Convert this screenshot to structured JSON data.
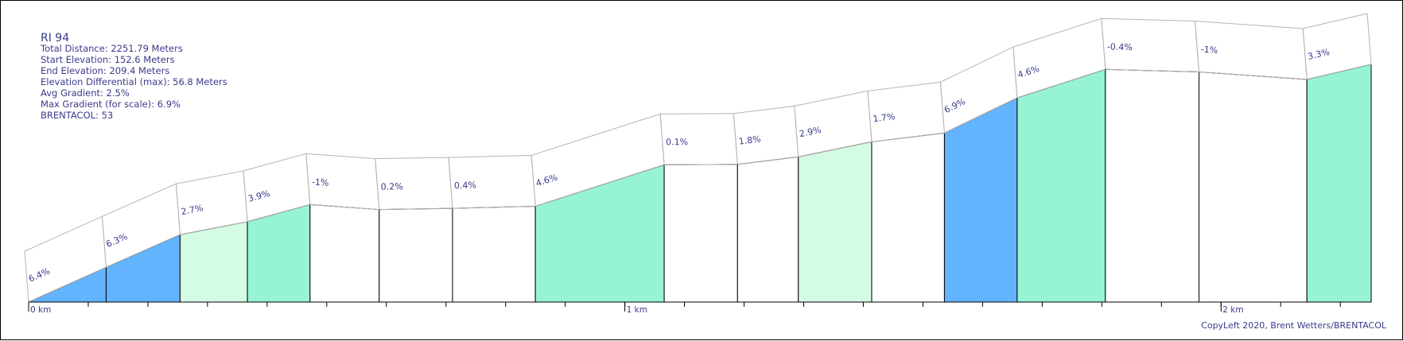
{
  "chart_data": {
    "type": "area",
    "title": "RI 94",
    "stats": [
      "Total Distance: 2251.79 Meters",
      "Start Elevation: 152.6 Meters",
      "End Elevation: 209.4 Meters",
      "Elevation Differential (max): 56.8 Meters",
      "Avg Gradient: 2.5%",
      "Max Gradient (for scale): 6.9%",
      "BRENTACOL: 53"
    ],
    "x_unit": "meters",
    "x_ticks": [
      {
        "value": 0,
        "label": "0 km"
      },
      {
        "value": 1000,
        "label": "1 km"
      },
      {
        "value": 2000,
        "label": "2 km"
      }
    ],
    "minor_tick_step": 100,
    "x_max": 2251.79,
    "segments": [
      {
        "start": 0,
        "end": 130,
        "gradient": "6.4%",
        "color": "#63b4ff"
      },
      {
        "start": 130,
        "end": 254,
        "gradient": "6.3%",
        "color": "#63b4ff"
      },
      {
        "start": 254,
        "end": 367,
        "gradient": "2.7%",
        "color": "#d4fce4"
      },
      {
        "start": 367,
        "end": 472,
        "gradient": "3.9%",
        "color": "#96f4d4"
      },
      {
        "start": 472,
        "end": 588,
        "gradient": "-1%",
        "color": "#ffffff"
      },
      {
        "start": 588,
        "end": 711,
        "gradient": "0.2%",
        "color": "#ffffff"
      },
      {
        "start": 711,
        "end": 850,
        "gradient": "0.4%",
        "color": "#ffffff"
      },
      {
        "start": 850,
        "end": 1066,
        "gradient": "4.6%",
        "color": "#96f4d4"
      },
      {
        "start": 1066,
        "end": 1189,
        "gradient": "0.1%",
        "color": "#ffffff"
      },
      {
        "start": 1189,
        "end": 1291,
        "gradient": "1.8%",
        "color": "#ffffff"
      },
      {
        "start": 1291,
        "end": 1414,
        "gradient": "2.9%",
        "color": "#d4fce4"
      },
      {
        "start": 1414,
        "end": 1536,
        "gradient": "1.7%",
        "color": "#ffffff"
      },
      {
        "start": 1536,
        "end": 1658,
        "gradient": "6.9%",
        "color": "#63b4ff"
      },
      {
        "start": 1658,
        "end": 1806,
        "gradient": "4.6%",
        "color": "#96f4d4"
      },
      {
        "start": 1806,
        "end": 1963,
        "gradient": "-0.4%",
        "color": "#ffffff"
      },
      {
        "start": 1963,
        "end": 2144,
        "gradient": "-1%",
        "color": "#ffffff"
      },
      {
        "start": 2144,
        "end": 2251.79,
        "gradient": "3.3%",
        "color": "#96f4d4"
      }
    ],
    "profile_elevations": [
      152.6,
      160.9,
      168.7,
      171.8,
      175.9,
      174.7,
      175.0,
      175.5,
      185.4,
      185.5,
      187.3,
      190.9,
      193.0,
      201.4,
      208.2,
      207.6,
      205.8,
      209.4
    ],
    "elev_range": [
      152.6,
      209.4
    ]
  },
  "copyleft": "CopyLeft 2020, Brent Wetters/BRENTACOL"
}
